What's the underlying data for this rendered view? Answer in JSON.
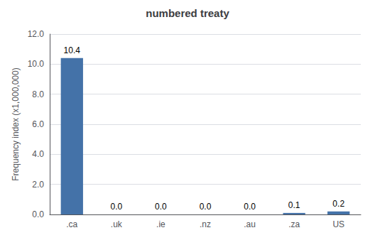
{
  "chart_data": {
    "type": "bar",
    "title": "numbered treaty",
    "categories": [
      ".ca",
      ".uk",
      ".ie",
      ".nz",
      ".au",
      ".za",
      "US"
    ],
    "values": [
      10.4,
      0.0,
      0.0,
      0.0,
      0.0,
      0.1,
      0.2
    ],
    "value_labels": [
      "10.4",
      "0.0",
      "0.0",
      "0.0",
      "0.0",
      "0.1",
      "0.2"
    ],
    "data_labels": true,
    "color": "#4472a8",
    "ylabel": "Frequency index (x1,000,000)",
    "ylim": [
      0,
      12.0
    ],
    "yticks": [
      {
        "value": 0.0,
        "label": "0.0"
      },
      {
        "value": 2.0,
        "label": "2.0"
      },
      {
        "value": 4.0,
        "label": "4.0"
      },
      {
        "value": 6.0,
        "label": "6.0"
      },
      {
        "value": 8.0,
        "label": "8.0"
      },
      {
        "value": 10.0,
        "label": "10.0"
      },
      {
        "value": 12.0,
        "label": "12.0"
      }
    ],
    "grid": true
  }
}
